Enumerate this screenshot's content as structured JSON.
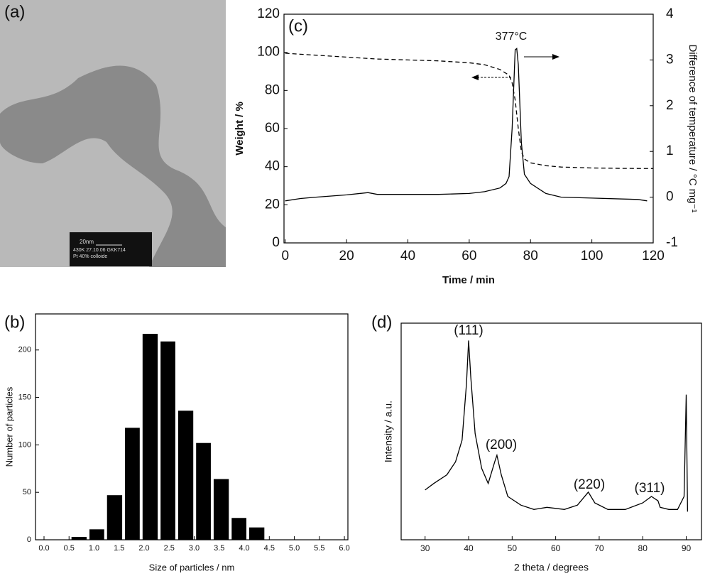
{
  "panel_a": {
    "label": "(a)",
    "scale_bar": "20nm",
    "info_lines": [
      "430K   27.10.06     GKK714",
      "Pt 40% colloide"
    ]
  },
  "chart_data": [
    {
      "type": "line",
      "label": "(c)",
      "xlabel": "Time / min",
      "ylabel": "Weight  / %",
      "y2label": "Difference of temperature / °C mg⁻¹",
      "annotation": "377°C",
      "xlim": [
        -0.4,
        120
      ],
      "xticks": [
        0,
        20,
        40,
        60,
        80,
        100,
        120
      ],
      "ylim": [
        0,
        120
      ],
      "yticks": [
        0,
        20,
        40,
        60,
        80,
        100,
        120
      ],
      "y2lim": [
        -1,
        4
      ],
      "y2ticks": [
        -1,
        0,
        1,
        2,
        3,
        4
      ],
      "series": [
        {
          "color": "#000000",
          "dash": true,
          "x": [
            0,
            5,
            10,
            20,
            30,
            40,
            50,
            60,
            65,
            70,
            73,
            74,
            75,
            76,
            77,
            78,
            80,
            85,
            90,
            100,
            110,
            120
          ],
          "values": [
            99.5,
            99,
            98.5,
            97.5,
            96.5,
            96,
            95.5,
            94.5,
            93.5,
            91,
            88,
            84,
            75,
            60,
            48,
            44,
            42,
            40.5,
            39.8,
            39.3,
            39.1,
            39
          ]
        },
        {
          "color": "#000000",
          "dash": false,
          "axis": "y2",
          "x": [
            0,
            5,
            10,
            20,
            27,
            30,
            40,
            50,
            60,
            65,
            70,
            72,
            73,
            74,
            75,
            75.5,
            76,
            77,
            78,
            80,
            85,
            90,
            100,
            110,
            115,
            118
          ],
          "values": [
            -0.08,
            -0.03,
            0,
            0.05,
            0.1,
            0.06,
            0.06,
            0.06,
            0.08,
            0.12,
            0.2,
            0.3,
            0.45,
            1.5,
            3.22,
            3.25,
            2.9,
            1.2,
            0.5,
            0.3,
            0.08,
            0,
            -0.02,
            -0.04,
            -0.05,
            -0.08
          ]
        }
      ]
    },
    {
      "type": "histogram",
      "label": "(b)",
      "xlabel": "Size of particles / nm",
      "ylabel": "Number of particles",
      "color": "#000000",
      "bins": [
        0.52,
        0.88,
        1.23,
        1.59,
        1.94,
        2.3,
        2.65,
        3.01,
        3.36,
        3.72,
        4.07,
        4.43
      ],
      "values": [
        3,
        11,
        47,
        118,
        217,
        209,
        136,
        102,
        64,
        23,
        13
      ],
      "xlim": [
        -0.17,
        6.07
      ],
      "xticks": [
        {
          "value": 0,
          "label": "0.0"
        },
        {
          "value": 0.5,
          "label": "0.5"
        },
        {
          "value": 1,
          "label": "1.0"
        },
        {
          "value": 1.5,
          "label": "1.5"
        },
        {
          "value": 2,
          "label": "2.0"
        },
        {
          "value": 2.5,
          "label": "2.5"
        },
        {
          "value": 3,
          "label": "3.0"
        },
        {
          "value": 3.5,
          "label": "3.5"
        },
        {
          "value": 4,
          "label": "4.0"
        },
        {
          "value": 4.5,
          "label": "4.5"
        },
        {
          "value": 5,
          "label": "5.0"
        },
        {
          "value": 5.5,
          "label": "5.5"
        },
        {
          "value": 6,
          "label": "6.0"
        }
      ],
      "ylim": [
        0,
        238
      ],
      "yticks": [
        0,
        50,
        100,
        150,
        200
      ]
    },
    {
      "type": "line",
      "label": "(d)",
      "xlabel": "2 theta / degrees",
      "ylabel": "Intensity / a.u.",
      "peak_labels": [
        "(111)",
        "(200)",
        "(220)",
        "(311)"
      ],
      "xlim": [
        24.5,
        93.5
      ],
      "xticks": [
        30,
        40,
        50,
        60,
        70,
        80,
        90
      ],
      "ylim": [
        0,
        100
      ],
      "yticks": [],
      "series": [
        {
          "color": "#000000",
          "dash": false,
          "x": [
            30,
            32,
            35,
            37,
            38.5,
            39.5,
            40,
            40.5,
            41.5,
            43,
            44.5,
            46,
            46.5,
            47.5,
            49,
            52,
            55,
            58,
            62,
            65,
            67.5,
            69,
            72,
            76,
            80,
            82,
            83.5,
            84,
            86,
            88,
            89.5,
            90,
            90.3
          ],
          "values": [
            23,
            26,
            30,
            36,
            46,
            72,
            92,
            75,
            49,
            33,
            26,
            36,
            39,
            30,
            20,
            16,
            14,
            15,
            14,
            16,
            22,
            17,
            14,
            14,
            17,
            20,
            18,
            15,
            14,
            14,
            20,
            67,
            13
          ]
        }
      ]
    }
  ]
}
